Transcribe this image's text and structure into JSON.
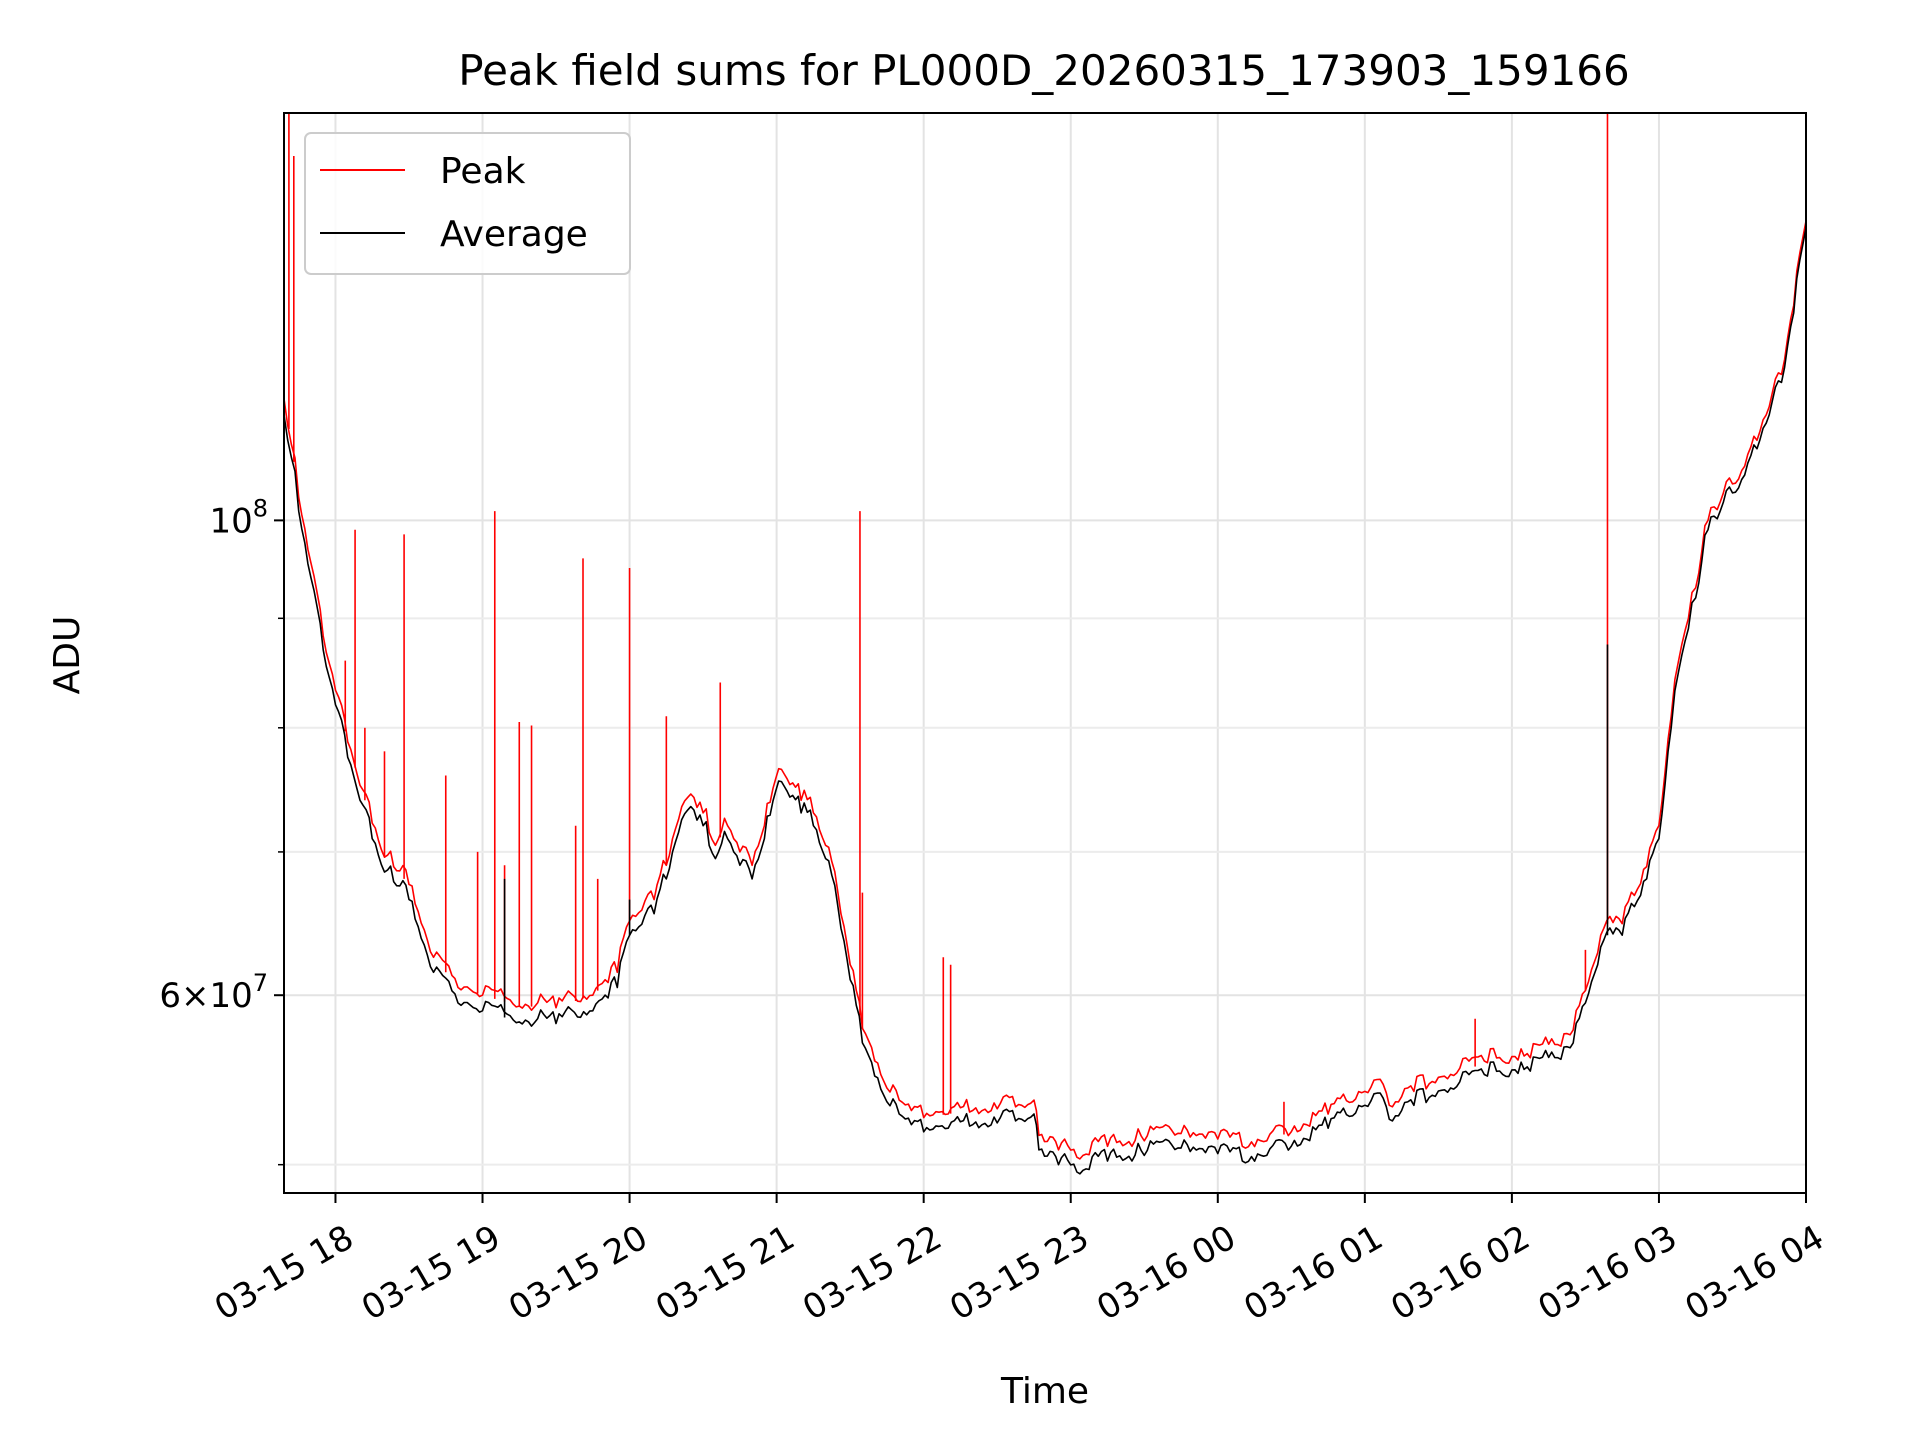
{
  "chart_data": {
    "type": "line",
    "title": "Peak field sums for PL000D_20260315_173903_159166",
    "xlabel": "Time",
    "ylabel": "ADU",
    "y_scale": "log",
    "ylim": [
      48500000,
      155000000
    ],
    "xlim": [
      "2026-03-15 17:39",
      "2026-03-16 04:00"
    ],
    "grid": true,
    "legend_position": "upper-left",
    "x_tick_labels": [
      "03-15 18",
      "03-15 19",
      "03-15 20",
      "03-15 21",
      "03-15 22",
      "03-15 23",
      "03-16 00",
      "03-16 01",
      "03-16 02",
      "03-16 03",
      "03-16 04"
    ],
    "x_ticks": [
      "2026-03-15 18:00",
      "2026-03-15 19:00",
      "2026-03-15 20:00",
      "2026-03-15 21:00",
      "2026-03-15 22:00",
      "2026-03-15 23:00",
      "2026-03-16 00:00",
      "2026-03-16 01:00",
      "2026-03-16 02:00",
      "2026-03-16 03:00",
      "2026-03-16 04:00"
    ],
    "y_major_ticks": [
      {
        "value": 60000000,
        "mantissa": "6",
        "exponent": "7"
      },
      {
        "value": 100000000,
        "mantissa": "",
        "exponent": "8"
      }
    ],
    "y_minor_ticks": [
      50000000,
      70000000,
      80000000,
      90000000
    ],
    "series": [
      {
        "name": "Average",
        "color": "#000000",
        "x": [
          "2026-03-15 17:39",
          "2026-03-15 17:42",
          "2026-03-15 17:45",
          "2026-03-15 17:50",
          "2026-03-15 17:55",
          "2026-03-15 18:00",
          "2026-03-15 18:05",
          "2026-03-15 18:10",
          "2026-03-15 18:15",
          "2026-03-15 18:20",
          "2026-03-15 18:25",
          "2026-03-15 18:30",
          "2026-03-15 18:40",
          "2026-03-15 18:50",
          "2026-03-15 19:00",
          "2026-03-15 19:15",
          "2026-03-15 19:30",
          "2026-03-15 19:45",
          "2026-03-15 19:55",
          "2026-03-15 20:00",
          "2026-03-15 20:10",
          "2026-03-15 20:15",
          "2026-03-15 20:20",
          "2026-03-15 20:25",
          "2026-03-15 20:30",
          "2026-03-15 20:35",
          "2026-03-15 20:40",
          "2026-03-15 20:45",
          "2026-03-15 20:50",
          "2026-03-15 20:55",
          "2026-03-15 21:02",
          "2026-03-15 21:10",
          "2026-03-15 21:15",
          "2026-03-15 21:20",
          "2026-03-15 21:25",
          "2026-03-15 21:30",
          "2026-03-15 21:35",
          "2026-03-15 21:40",
          "2026-03-15 21:45",
          "2026-03-15 21:50",
          "2026-03-15 21:55",
          "2026-03-15 22:00",
          "2026-03-15 22:10",
          "2026-03-15 22:20",
          "2026-03-15 22:30",
          "2026-03-15 22:40",
          "2026-03-15 22:45",
          "2026-03-15 22:47",
          "2026-03-15 22:55",
          "2026-03-15 23:05",
          "2026-03-15 23:15",
          "2026-03-15 23:30",
          "2026-03-15 23:45",
          "2026-03-16 00:00",
          "2026-03-16 00:10",
          "2026-03-16 00:20",
          "2026-03-16 00:30",
          "2026-03-16 00:45",
          "2026-03-16 01:00",
          "2026-03-16 01:05",
          "2026-03-16 01:10",
          "2026-03-16 01:20",
          "2026-03-16 01:35",
          "2026-03-16 01:50",
          "2026-03-16 02:05",
          "2026-03-16 02:20",
          "2026-03-16 02:25",
          "2026-03-16 02:30",
          "2026-03-16 02:35",
          "2026-03-16 02:40",
          "2026-03-16 02:45",
          "2026-03-16 02:50",
          "2026-03-16 02:55",
          "2026-03-16 03:00",
          "2026-03-16 03:05",
          "2026-03-16 03:08",
          "2026-03-16 03:12",
          "2026-03-16 03:15",
          "2026-03-16 03:20",
          "2026-03-16 03:25",
          "2026-03-16 03:30",
          "2026-03-16 03:35",
          "2026-03-16 03:40",
          "2026-03-16 03:45",
          "2026-03-16 03:50",
          "2026-03-16 03:55",
          "2026-03-16 04:00"
        ],
        "y": [
          112000000,
          107000000,
          101000000,
          94000000,
          87000000,
          82000000,
          77500000,
          74000000,
          71000000,
          68500000,
          67500000,
          66500000,
          61500000,
          59500000,
          59000000,
          58300000,
          58200000,
          59000000,
          60500000,
          64000000,
          65500000,
          68000000,
          71500000,
          73500000,
          72000000,
          69500000,
          71000000,
          69000000,
          68000000,
          71000000,
          75500000,
          73000000,
          72000000,
          69500000,
          66000000,
          61000000,
          57000000,
          55000000,
          53500000,
          52800000,
          52200000,
          51800000,
          52000000,
          52200000,
          52300000,
          52500000,
          52800000,
          50800000,
          50000000,
          49700000,
          50200000,
          50500000,
          50900000,
          50600000,
          50200000,
          50500000,
          51000000,
          52000000,
          53300000,
          54000000,
          52500000,
          53300000,
          54300000,
          55000000,
          55400000,
          56000000,
          57000000,
          59500000,
          62000000,
          64500000,
          64000000,
          66000000,
          68000000,
          71000000,
          80000000,
          85000000,
          89000000,
          92000000,
          99000000,
          101000000,
          103000000,
          105000000,
          108000000,
          112000000,
          116000000,
          125000000,
          137000000
        ]
      },
      {
        "name": "Peak",
        "color": "#ff0000",
        "x": [
          "2026-03-15 17:39",
          "2026-03-15 17:42",
          "2026-03-15 17:45",
          "2026-03-15 17:50",
          "2026-03-15 17:55",
          "2026-03-15 18:00",
          "2026-03-15 18:05",
          "2026-03-15 18:10",
          "2026-03-15 18:15",
          "2026-03-15 18:20",
          "2026-03-15 18:25",
          "2026-03-15 18:30",
          "2026-03-15 18:40",
          "2026-03-15 18:50",
          "2026-03-15 19:00",
          "2026-03-15 19:15",
          "2026-03-15 19:30",
          "2026-03-15 19:45",
          "2026-03-15 19:55",
          "2026-03-15 20:00",
          "2026-03-15 20:10",
          "2026-03-15 20:15",
          "2026-03-15 20:20",
          "2026-03-15 20:25",
          "2026-03-15 20:30",
          "2026-03-15 20:35",
          "2026-03-15 20:40",
          "2026-03-15 20:45",
          "2026-03-15 20:50",
          "2026-03-15 20:55",
          "2026-03-15 21:02",
          "2026-03-15 21:10",
          "2026-03-15 21:15",
          "2026-03-15 21:20",
          "2026-03-15 21:25",
          "2026-03-15 21:30",
          "2026-03-15 21:35",
          "2026-03-15 21:40",
          "2026-03-15 21:45",
          "2026-03-15 21:50",
          "2026-03-15 21:55",
          "2026-03-15 22:00",
          "2026-03-15 22:10",
          "2026-03-15 22:20",
          "2026-03-15 22:30",
          "2026-03-15 22:40",
          "2026-03-15 22:45",
          "2026-03-15 22:47",
          "2026-03-15 22:55",
          "2026-03-15 23:05",
          "2026-03-15 23:15",
          "2026-03-15 23:30",
          "2026-03-15 23:45",
          "2026-03-16 00:00",
          "2026-03-16 00:10",
          "2026-03-16 00:20",
          "2026-03-16 00:30",
          "2026-03-16 00:45",
          "2026-03-16 01:00",
          "2026-03-16 01:05",
          "2026-03-16 01:10",
          "2026-03-16 01:20",
          "2026-03-16 01:35",
          "2026-03-16 01:50",
          "2026-03-16 02:05",
          "2026-03-16 02:20",
          "2026-03-16 02:25",
          "2026-03-16 02:30",
          "2026-03-16 02:35",
          "2026-03-16 02:40",
          "2026-03-16 02:45",
          "2026-03-16 02:50",
          "2026-03-16 02:55",
          "2026-03-16 03:00",
          "2026-03-16 03:05",
          "2026-03-16 03:08",
          "2026-03-16 03:12",
          "2026-03-16 03:15",
          "2026-03-16 03:20",
          "2026-03-16 03:25",
          "2026-03-16 03:30",
          "2026-03-16 03:35",
          "2026-03-16 03:40",
          "2026-03-16 03:45",
          "2026-03-16 03:50",
          "2026-03-16 03:55",
          "2026-03-16 04:00"
        ],
        "y": [
          114000000,
          108500000,
          102500000,
          95500000,
          88300000,
          83300000,
          78800000,
          75200000,
          72200000,
          69600000,
          68600000,
          67600000,
          62500000,
          60500000,
          60000000,
          59300000,
          59200000,
          60000000,
          61500000,
          65000000,
          66500000,
          69000000,
          72500000,
          74500000,
          73000000,
          70500000,
          72000000,
          70000000,
          69000000,
          72000000,
          76500000,
          74000000,
          73000000,
          70500000,
          67000000,
          62000000,
          57900000,
          55900000,
          54300000,
          53600000,
          53000000,
          52600000,
          52800000,
          53000000,
          53100000,
          53300000,
          53600000,
          51600000,
          50800000,
          50500000,
          51000000,
          51300000,
          51700000,
          51400000,
          51000000,
          51300000,
          51800000,
          52800000,
          54100000,
          54800000,
          53300000,
          54100000,
          55100000,
          55800000,
          56200000,
          56800000,
          57800000,
          60300000,
          62800000,
          65300000,
          64800000,
          66800000,
          68900000,
          72000000,
          81000000,
          86000000,
          90000000,
          93000000,
          100000000,
          102000000,
          104000000,
          106000000,
          109000000,
          113000000,
          117000000,
          126000000,
          138000000
        ]
      }
    ],
    "peak_spikes": [
      {
        "x": "2026-03-15 17:41",
        "y": 155000000
      },
      {
        "x": "2026-03-15 17:43",
        "y": 148000000
      },
      {
        "x": "2026-03-15 18:08",
        "y": 99000000
      },
      {
        "x": "2026-03-15 18:04",
        "y": 86000000
      },
      {
        "x": "2026-03-15 18:12",
        "y": 80000000
      },
      {
        "x": "2026-03-15 18:20",
        "y": 78000000
      },
      {
        "x": "2026-03-15 18:28",
        "y": 98500000
      },
      {
        "x": "2026-03-15 18:45",
        "y": 76000000
      },
      {
        "x": "2026-03-15 18:58",
        "y": 70000000
      },
      {
        "x": "2026-03-15 19:05",
        "y": 101000000
      },
      {
        "x": "2026-03-15 19:09",
        "y": 69000000
      },
      {
        "x": "2026-03-15 19:15",
        "y": 80500000
      },
      {
        "x": "2026-03-15 19:20",
        "y": 80200000
      },
      {
        "x": "2026-03-15 19:38",
        "y": 72000000
      },
      {
        "x": "2026-03-15 19:47",
        "y": 68000000
      },
      {
        "x": "2026-03-15 19:41",
        "y": 96000000
      },
      {
        "x": "2026-03-15 20:00",
        "y": 95000000
      },
      {
        "x": "2026-03-15 20:15",
        "y": 81000000
      },
      {
        "x": "2026-03-15 20:37",
        "y": 84000000
      },
      {
        "x": "2026-03-15 21:34",
        "y": 101000000
      },
      {
        "x": "2026-03-15 21:35",
        "y": 67000000
      },
      {
        "x": "2026-03-15 21:40",
        "y": 56000000
      },
      {
        "x": "2026-03-15 22:08",
        "y": 62500000
      },
      {
        "x": "2026-03-15 22:11",
        "y": 62000000
      },
      {
        "x": "2026-03-16 00:27",
        "y": 53500000
      },
      {
        "x": "2026-03-16 01:45",
        "y": 58500000
      },
      {
        "x": "2026-03-16 02:30",
        "y": 63000000
      },
      {
        "x": "2026-03-16 02:39",
        "y": 155000000
      }
    ],
    "average_spikes": [
      {
        "x": "2026-03-16 02:39",
        "y": 87500000
      },
      {
        "x": "2026-03-15 19:09",
        "y": 68000000
      },
      {
        "x": "2026-03-15 20:00",
        "y": 66500000
      }
    ]
  }
}
